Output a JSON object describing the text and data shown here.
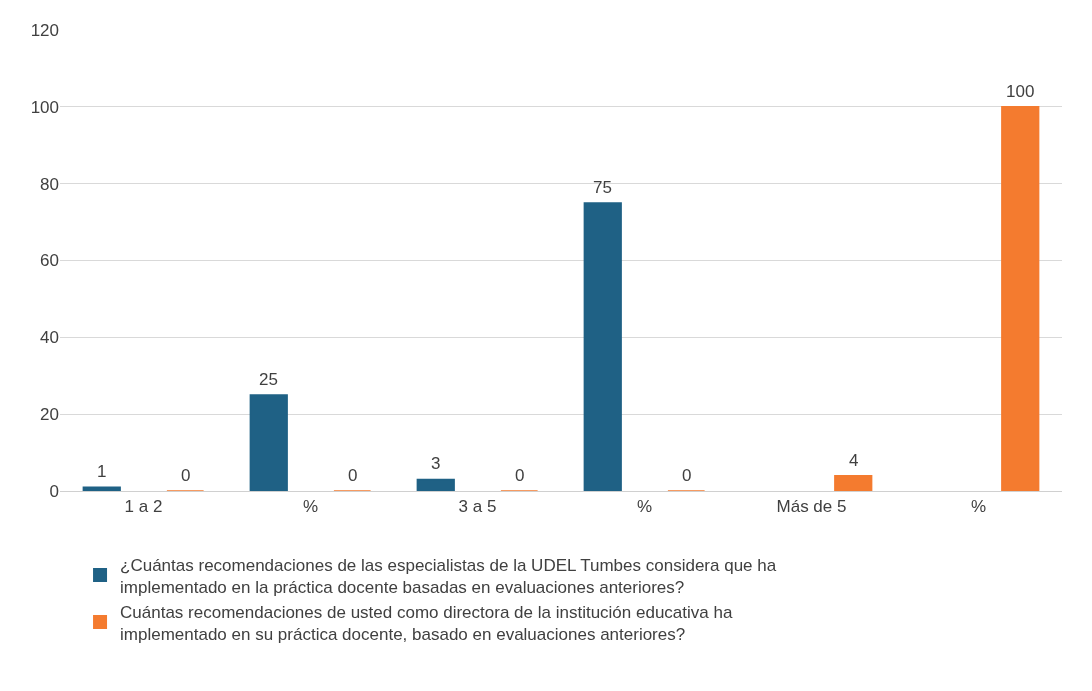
{
  "chart_data": {
    "type": "bar",
    "categories": [
      "1 a 2",
      "%",
      "3 a 5",
      "%",
      "Más de 5",
      "%"
    ],
    "series": [
      {
        "name": "¿Cuántas recomendaciones de las especialistas de la UDEL Tumbes considera que ha implementado en la práctica docente basadas en evaluaciones anteriores?",
        "color": "#1f6185",
        "values": [
          1,
          25,
          3,
          75,
          null,
          null
        ],
        "value_labels": [
          "1",
          "25",
          "3",
          "75",
          null,
          null
        ]
      },
      {
        "name": " Cuántas recomendaciones de usted como directora de la institución educativa ha implementado en su práctica docente, basado en evaluaciones anteriores?",
        "color": "#f47b2f",
        "values": [
          0,
          0,
          0,
          0,
          4,
          100
        ],
        "value_labels": [
          "0",
          "0",
          "0",
          "0",
          "4",
          "100"
        ]
      }
    ],
    "ylim": [
      0,
      120
    ],
    "yticks": [
      0,
      20,
      40,
      60,
      80,
      100,
      120
    ],
    "grid": "y",
    "legend": "bottom"
  }
}
